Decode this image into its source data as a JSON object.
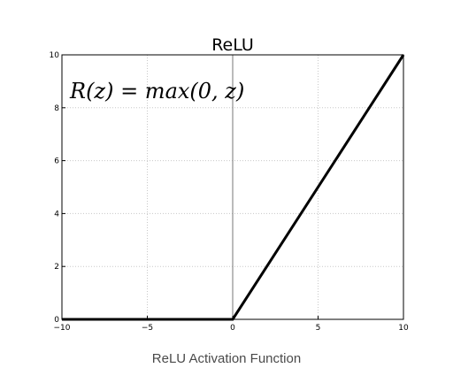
{
  "chart_data": {
    "type": "line",
    "title": "ReLU",
    "annotation": "R(z) = max(0,  z)",
    "xlabel": "",
    "ylabel": "",
    "xlim": [
      -10,
      10
    ],
    "ylim": [
      0,
      10
    ],
    "x_ticks": [
      -10,
      -5,
      0,
      5,
      10
    ],
    "x_tick_labels": [
      "−10",
      "−5",
      "0",
      "5",
      "10"
    ],
    "y_ticks": [
      0,
      2,
      4,
      6,
      8,
      10
    ],
    "y_tick_labels": [
      "0",
      "2",
      "4",
      "6",
      "8",
      "10"
    ],
    "grid": true,
    "series": [
      {
        "x": [
          -10,
          0,
          10
        ],
        "y": [
          0,
          0,
          10
        ],
        "color": "#000000"
      }
    ],
    "vertical_lines": [
      0
    ]
  },
  "caption": "ReLU Activation Function"
}
